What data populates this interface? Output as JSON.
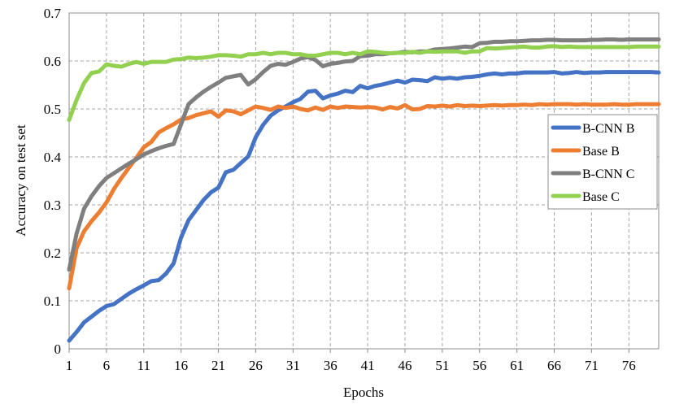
{
  "chart_data": {
    "type": "line",
    "title": "",
    "xlabel": "Epochs",
    "ylabel": "Accuracy on test set",
    "xlim": [
      1,
      80
    ],
    "ylim": [
      0,
      0.7
    ],
    "x_ticks": [
      1,
      6,
      11,
      16,
      21,
      26,
      31,
      36,
      41,
      46,
      51,
      56,
      61,
      66,
      71,
      76
    ],
    "x_tick_labels": [
      "1",
      "6",
      "11",
      "16",
      "21",
      "26",
      "31",
      "36",
      "41",
      "46",
      "51",
      "56",
      "61",
      "66",
      "71",
      "76"
    ],
    "y_ticks": [
      0,
      0.1,
      0.2,
      0.3,
      0.4,
      0.5,
      0.6,
      0.7
    ],
    "y_tick_labels": [
      "0",
      "0.1",
      "0.2",
      "0.3",
      "0.4",
      "0.5",
      "0.6",
      "0.7"
    ],
    "grid": "dashed",
    "legend_position": "right",
    "x": [
      1,
      2,
      3,
      4,
      5,
      6,
      7,
      8,
      9,
      10,
      11,
      12,
      13,
      14,
      15,
      16,
      17,
      18,
      19,
      20,
      21,
      22,
      23,
      24,
      25,
      26,
      27,
      28,
      29,
      30,
      31,
      32,
      33,
      34,
      35,
      36,
      37,
      38,
      39,
      40,
      41,
      42,
      43,
      44,
      45,
      46,
      47,
      48,
      49,
      50,
      51,
      52,
      53,
      54,
      55,
      56,
      57,
      58,
      59,
      60,
      61,
      62,
      63,
      64,
      65,
      66,
      67,
      68,
      69,
      70,
      71,
      72,
      73,
      74,
      75,
      76,
      77,
      78,
      79,
      80
    ],
    "series": [
      {
        "name": "B-CNN B",
        "color": "#4472C4",
        "values": [
          0.017,
          0.035,
          0.055,
          0.067,
          0.079,
          0.089,
          0.093,
          0.104,
          0.115,
          0.124,
          0.132,
          0.141,
          0.143,
          0.157,
          0.178,
          0.232,
          0.268,
          0.289,
          0.31,
          0.326,
          0.336,
          0.368,
          0.373,
          0.387,
          0.401,
          0.441,
          0.467,
          0.486,
          0.497,
          0.505,
          0.514,
          0.521,
          0.536,
          0.538,
          0.522,
          0.528,
          0.532,
          0.538,
          0.535,
          0.548,
          0.543,
          0.548,
          0.551,
          0.555,
          0.559,
          0.555,
          0.561,
          0.56,
          0.558,
          0.566,
          0.563,
          0.565,
          0.563,
          0.566,
          0.567,
          0.569,
          0.572,
          0.574,
          0.572,
          0.574,
          0.574,
          0.576,
          0.576,
          0.576,
          0.576,
          0.577,
          0.574,
          0.575,
          0.577,
          0.575,
          0.576,
          0.576,
          0.577,
          0.577,
          0.577,
          0.577,
          0.577,
          0.577,
          0.577,
          0.576
        ]
      },
      {
        "name": "Base B",
        "color": "#ED7D31",
        "values": [
          0.126,
          0.21,
          0.245,
          0.266,
          0.284,
          0.305,
          0.333,
          0.356,
          0.377,
          0.398,
          0.42,
          0.431,
          0.451,
          0.46,
          0.468,
          0.478,
          0.481,
          0.487,
          0.491,
          0.495,
          0.484,
          0.497,
          0.495,
          0.489,
          0.497,
          0.505,
          0.502,
          0.498,
          0.505,
          0.502,
          0.505,
          0.5,
          0.497,
          0.503,
          0.498,
          0.505,
          0.502,
          0.505,
          0.504,
          0.503,
          0.504,
          0.503,
          0.499,
          0.504,
          0.501,
          0.508,
          0.499,
          0.5,
          0.506,
          0.505,
          0.507,
          0.505,
          0.508,
          0.506,
          0.507,
          0.506,
          0.507,
          0.508,
          0.507,
          0.508,
          0.508,
          0.509,
          0.508,
          0.51,
          0.509,
          0.51,
          0.51,
          0.51,
          0.509,
          0.51,
          0.509,
          0.509,
          0.509,
          0.51,
          0.509,
          0.509,
          0.51,
          0.51,
          0.51,
          0.51
        ]
      },
      {
        "name": "B-CNN C",
        "color": "#7F7F7F",
        "values": [
          0.165,
          0.24,
          0.292,
          0.318,
          0.339,
          0.356,
          0.366,
          0.376,
          0.386,
          0.395,
          0.405,
          0.412,
          0.418,
          0.423,
          0.427,
          0.468,
          0.51,
          0.524,
          0.536,
          0.546,
          0.555,
          0.565,
          0.568,
          0.571,
          0.551,
          0.562,
          0.577,
          0.59,
          0.594,
          0.592,
          0.598,
          0.605,
          0.608,
          0.602,
          0.589,
          0.594,
          0.596,
          0.599,
          0.6,
          0.61,
          0.611,
          0.614,
          0.614,
          0.616,
          0.617,
          0.619,
          0.618,
          0.62,
          0.62,
          0.624,
          0.625,
          0.626,
          0.628,
          0.63,
          0.629,
          0.637,
          0.638,
          0.64,
          0.64,
          0.641,
          0.641,
          0.642,
          0.643,
          0.643,
          0.644,
          0.644,
          0.643,
          0.643,
          0.643,
          0.643,
          0.644,
          0.644,
          0.645,
          0.645,
          0.644,
          0.645,
          0.645,
          0.645,
          0.645,
          0.645
        ]
      },
      {
        "name": "Base C",
        "color": "#92D050",
        "values": [
          0.477,
          0.519,
          0.554,
          0.575,
          0.578,
          0.593,
          0.59,
          0.588,
          0.594,
          0.598,
          0.594,
          0.598,
          0.598,
          0.598,
          0.603,
          0.604,
          0.607,
          0.606,
          0.607,
          0.609,
          0.612,
          0.612,
          0.611,
          0.609,
          0.614,
          0.614,
          0.617,
          0.614,
          0.617,
          0.617,
          0.614,
          0.614,
          0.611,
          0.611,
          0.614,
          0.617,
          0.617,
          0.614,
          0.617,
          0.614,
          0.62,
          0.619,
          0.617,
          0.616,
          0.617,
          0.617,
          0.619,
          0.617,
          0.62,
          0.619,
          0.62,
          0.62,
          0.62,
          0.617,
          0.62,
          0.62,
          0.627,
          0.626,
          0.627,
          0.628,
          0.629,
          0.63,
          0.628,
          0.628,
          0.63,
          0.631,
          0.629,
          0.63,
          0.629,
          0.629,
          0.629,
          0.629,
          0.629,
          0.629,
          0.629,
          0.629,
          0.63,
          0.63,
          0.63,
          0.63
        ]
      }
    ]
  }
}
